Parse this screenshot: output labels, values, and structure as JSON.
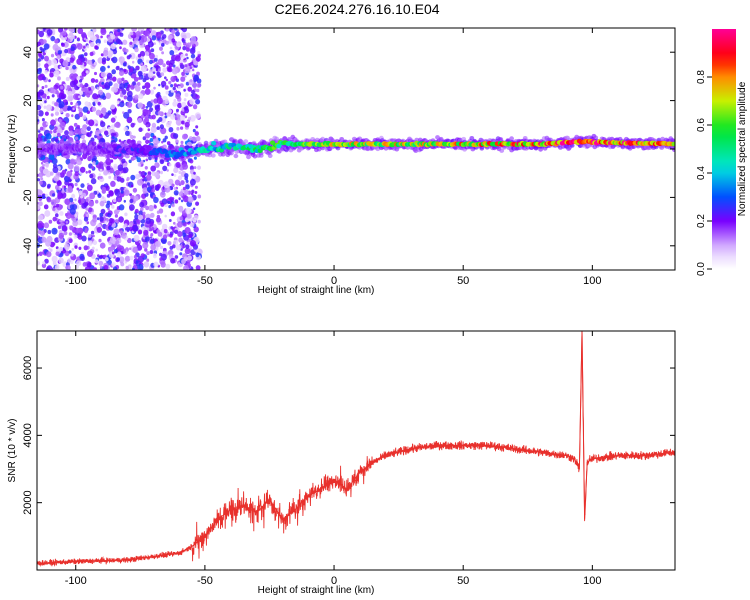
{
  "title": "C2E6.2024.276.16.10.E04",
  "colors": {
    "snr_line": "#e8302c",
    "background": "#ffffff",
    "axes": "#000000"
  },
  "chart_data": [
    {
      "type": "heatmap",
      "xlabel": "Height of straight line (km)",
      "ylabel": "Frequency (Hz)",
      "xlim": [
        -115,
        132
      ],
      "ylim": [
        -50,
        50
      ],
      "xticks": [
        "-100",
        "-50",
        "0",
        "50",
        "100"
      ],
      "xtick_values": [
        -100,
        -50,
        0,
        50,
        100
      ],
      "yticks": [
        "40",
        "20",
        "0",
        "-20",
        "-40"
      ],
      "ytick_values": [
        40,
        20,
        0,
        -20,
        -40
      ],
      "colorbar": {
        "label": "Normalized spectral amplitude",
        "range": [
          0,
          1
        ],
        "ticks": [
          "0.0",
          "0.2",
          "0.4",
          "0.6",
          "0.8"
        ],
        "tick_values": [
          0.0,
          0.2,
          0.4,
          0.6,
          0.8
        ],
        "colormap": "rainbow"
      },
      "features": {
        "noise_region_x": [
          -115,
          -52
        ],
        "ridge": [
          {
            "x": -80,
            "freq": 0,
            "amp": 0.25
          },
          {
            "x": -60,
            "freq": -2,
            "amp": 0.35
          },
          {
            "x": -50,
            "freq": 0,
            "amp": 0.45
          },
          {
            "x": -40,
            "freq": 1,
            "amp": 0.5
          },
          {
            "x": -30,
            "freq": 0,
            "amp": 0.55
          },
          {
            "x": -20,
            "freq": 2,
            "amp": 0.65
          },
          {
            "x": 0,
            "freq": 2,
            "amp": 0.75
          },
          {
            "x": 20,
            "freq": 2,
            "amp": 0.75
          },
          {
            "x": 50,
            "freq": 2,
            "amp": 0.8
          },
          {
            "x": 80,
            "freq": 2,
            "amp": 0.9
          },
          {
            "x": 95,
            "freq": 3,
            "amp": 1.0
          },
          {
            "x": 132,
            "freq": 2,
            "amp": 0.9
          }
        ]
      }
    },
    {
      "type": "line",
      "xlabel": "Height of straight line (km)",
      "ylabel": "SNR (10 * v/v)",
      "xlim": [
        -115,
        132
      ],
      "ylim": [
        0,
        7100
      ],
      "xticks": [
        "-100",
        "-50",
        "0",
        "50",
        "100"
      ],
      "xtick_values": [
        -100,
        -50,
        0,
        50,
        100
      ],
      "yticks": [
        "2000",
        "4000",
        "6000"
      ],
      "ytick_values": [
        2000,
        4000,
        6000
      ],
      "series": [
        {
          "x": [
            -115,
            -100,
            -80,
            -60,
            -55,
            -50,
            -45,
            -40,
            -35,
            -30,
            -25,
            -20,
            -15,
            -10,
            -5,
            0,
            5,
            10,
            15,
            20,
            25,
            30,
            40,
            50,
            60,
            70,
            80,
            90,
            93,
            95,
            96,
            97,
            98,
            100,
            110,
            120,
            132
          ],
          "y": [
            200,
            250,
            300,
            500,
            700,
            1000,
            1500,
            1800,
            1900,
            1700,
            2100,
            1500,
            1800,
            2200,
            2400,
            2700,
            2400,
            2900,
            3200,
            3400,
            3500,
            3600,
            3700,
            3700,
            3700,
            3600,
            3500,
            3400,
            3300,
            3000,
            7100,
            1500,
            3200,
            3300,
            3400,
            3400,
            3500
          ]
        }
      ]
    }
  ]
}
